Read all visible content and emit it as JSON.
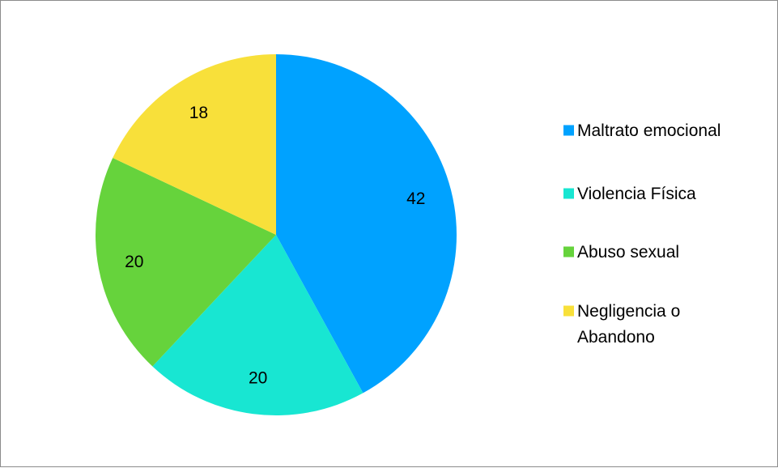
{
  "chart_data": {
    "type": "pie",
    "title": "",
    "categories": [
      "Maltrato emocional",
      "Violencia Física",
      "Abuso sexual",
      "Negligencia o Abandono"
    ],
    "values": [
      42,
      20,
      20,
      18
    ],
    "data_labels": [
      "42",
      "20",
      "20",
      "18"
    ],
    "colors": [
      "#00a2ff",
      "#18e6d2",
      "#66d33c",
      "#f8e03a"
    ],
    "start_angle": "12 o'clock",
    "direction": "clockwise",
    "legend": {
      "position": "right",
      "items": [
        {
          "label_lines": [
            "Maltrato emocional"
          ],
          "color": "#00a2ff"
        },
        {
          "label_lines": [
            "Violencia Física"
          ],
          "color": "#18e6d2"
        },
        {
          "label_lines": [
            "Negligencia o",
            "Abandono"
          ],
          "color": "#f8e03a"
        }
      ],
      "abuse_item": {
        "label_lines": [
          "Abuso sexual"
        ],
        "color": "#66d33c"
      }
    }
  }
}
